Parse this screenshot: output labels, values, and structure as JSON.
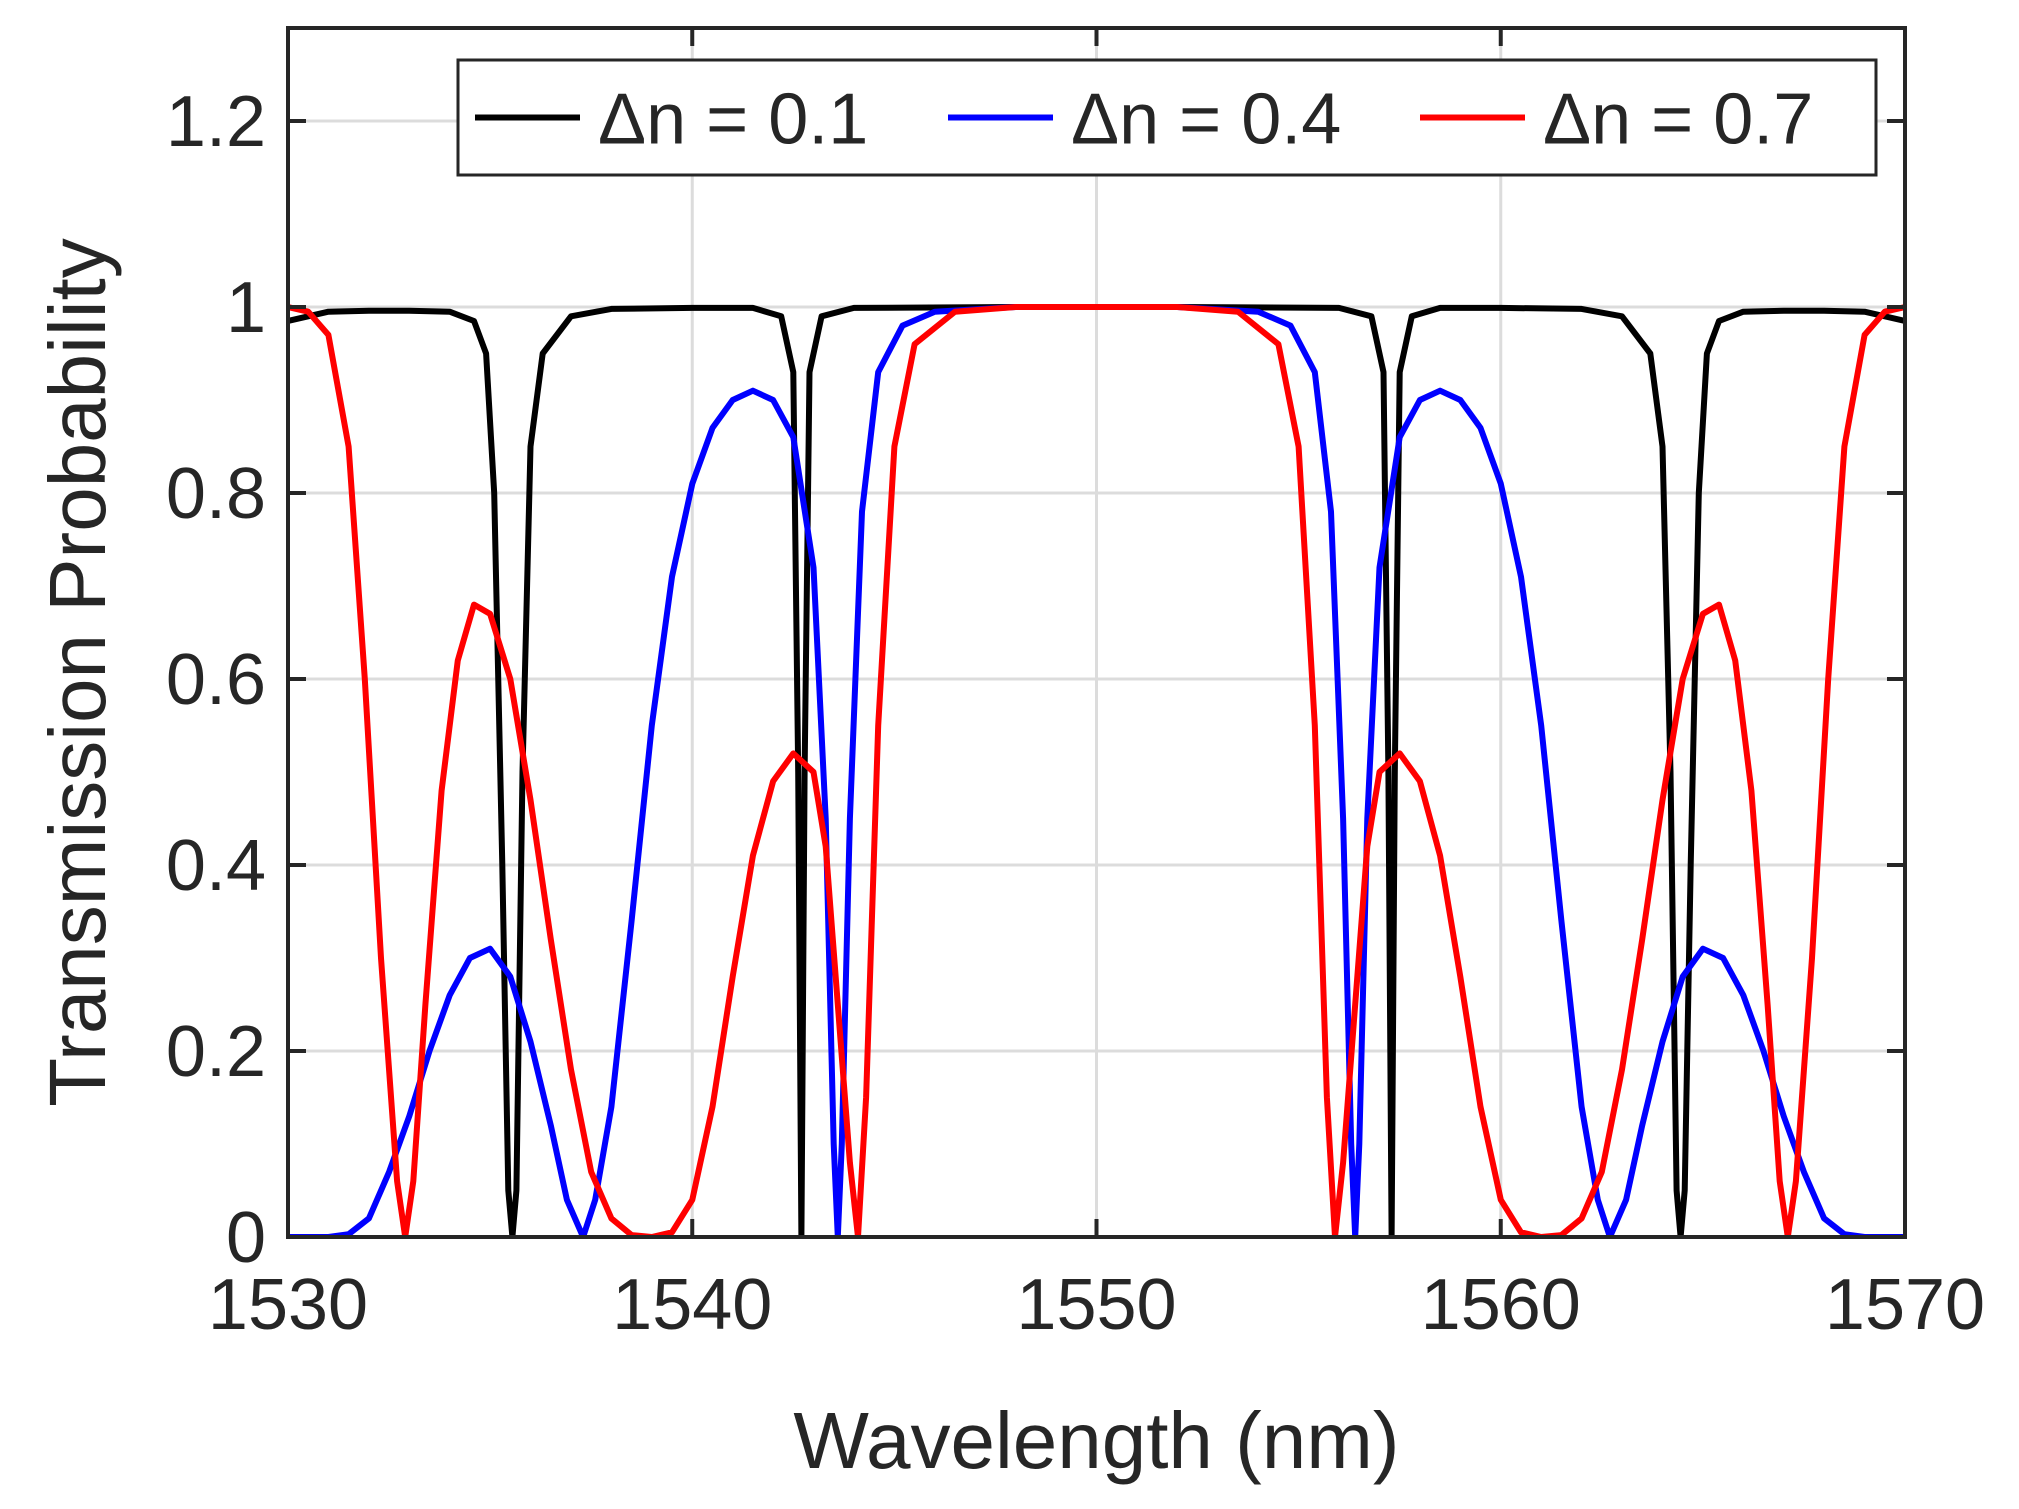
{
  "chart_data": {
    "type": "line",
    "title": "",
    "xlabel": "Wavelength (nm)",
    "ylabel": "Transmission Probability",
    "xlim": [
      1530,
      1570
    ],
    "ylim": [
      0,
      1.3
    ],
    "xticks": [
      1530,
      1540,
      1550,
      1560,
      1570
    ],
    "xtick_labels": [
      "1530",
      "1540",
      "1550",
      "1560",
      "1570"
    ],
    "yticks": [
      0,
      0.2,
      0.4,
      0.6,
      0.8,
      1,
      1.2
    ],
    "ytick_labels": [
      "0",
      "0.2",
      "0.4",
      "0.6",
      "0.8",
      "1",
      "1.2"
    ],
    "grid": true,
    "legend_position": "top-right",
    "series": [
      {
        "name": "Δn = 0.1",
        "color": "#000000",
        "points": [
          [
            1530,
            0.985
          ],
          [
            1530.5,
            0.99
          ],
          [
            1531,
            0.995
          ],
          [
            1532,
            0.996
          ],
          [
            1533,
            0.996
          ],
          [
            1534,
            0.995
          ],
          [
            1534.6,
            0.985
          ],
          [
            1534.9,
            0.95
          ],
          [
            1535.1,
            0.8
          ],
          [
            1535.3,
            0.4
          ],
          [
            1535.45,
            0.05
          ],
          [
            1535.55,
            0
          ],
          [
            1535.65,
            0.05
          ],
          [
            1535.8,
            0.5
          ],
          [
            1536,
            0.85
          ],
          [
            1536.3,
            0.95
          ],
          [
            1537,
            0.99
          ],
          [
            1538,
            0.998
          ],
          [
            1540,
            0.999
          ],
          [
            1541.5,
            0.999
          ],
          [
            1542.2,
            0.99
          ],
          [
            1542.5,
            0.93
          ],
          [
            1542.62,
            0.5
          ],
          [
            1542.7,
            0
          ],
          [
            1542.78,
            0.5
          ],
          [
            1542.9,
            0.93
          ],
          [
            1543.2,
            0.99
          ],
          [
            1544,
            0.999
          ],
          [
            1548,
            1
          ],
          [
            1552,
            1
          ],
          [
            1556,
            0.999
          ],
          [
            1556.8,
            0.99
          ],
          [
            1557.1,
            0.93
          ],
          [
            1557.22,
            0.5
          ],
          [
            1557.3,
            0
          ],
          [
            1557.38,
            0.5
          ],
          [
            1557.5,
            0.93
          ],
          [
            1557.8,
            0.99
          ],
          [
            1558.5,
            0.999
          ],
          [
            1560,
            0.999
          ],
          [
            1562,
            0.998
          ],
          [
            1563,
            0.99
          ],
          [
            1563.7,
            0.95
          ],
          [
            1564,
            0.85
          ],
          [
            1564.2,
            0.5
          ],
          [
            1564.35,
            0.05
          ],
          [
            1564.45,
            0
          ],
          [
            1564.55,
            0.05
          ],
          [
            1564.7,
            0.4
          ],
          [
            1564.9,
            0.8
          ],
          [
            1565.1,
            0.95
          ],
          [
            1565.4,
            0.985
          ],
          [
            1566,
            0.995
          ],
          [
            1567,
            0.996
          ],
          [
            1568,
            0.996
          ],
          [
            1569,
            0.995
          ],
          [
            1569.5,
            0.99
          ],
          [
            1570,
            0.985
          ]
        ]
      },
      {
        "name": "Δn = 0.4",
        "color": "#0000ff",
        "points": [
          [
            1530,
            0
          ],
          [
            1531,
            0
          ],
          [
            1531.5,
            0.003
          ],
          [
            1532,
            0.02
          ],
          [
            1532.5,
            0.07
          ],
          [
            1533,
            0.13
          ],
          [
            1533.5,
            0.2
          ],
          [
            1534,
            0.26
          ],
          [
            1534.5,
            0.3
          ],
          [
            1535,
            0.31
          ],
          [
            1535.5,
            0.28
          ],
          [
            1536,
            0.21
          ],
          [
            1536.5,
            0.12
          ],
          [
            1536.9,
            0.04
          ],
          [
            1537.3,
            0
          ],
          [
            1537.6,
            0.04
          ],
          [
            1538,
            0.14
          ],
          [
            1538.5,
            0.34
          ],
          [
            1539,
            0.55
          ],
          [
            1539.5,
            0.71
          ],
          [
            1540,
            0.81
          ],
          [
            1540.5,
            0.87
          ],
          [
            1541,
            0.9
          ],
          [
            1541.5,
            0.91
          ],
          [
            1542,
            0.9
          ],
          [
            1542.5,
            0.86
          ],
          [
            1543,
            0.72
          ],
          [
            1543.3,
            0.45
          ],
          [
            1543.5,
            0.1
          ],
          [
            1543.6,
            0
          ],
          [
            1543.7,
            0.1
          ],
          [
            1543.9,
            0.45
          ],
          [
            1544.2,
            0.78
          ],
          [
            1544.6,
            0.93
          ],
          [
            1545.2,
            0.98
          ],
          [
            1546,
            0.995
          ],
          [
            1548,
            1
          ],
          [
            1552,
            1
          ],
          [
            1554,
            0.995
          ],
          [
            1554.8,
            0.98
          ],
          [
            1555.4,
            0.93
          ],
          [
            1555.8,
            0.78
          ],
          [
            1556.1,
            0.45
          ],
          [
            1556.3,
            0.1
          ],
          [
            1556.4,
            0
          ],
          [
            1556.5,
            0.1
          ],
          [
            1556.7,
            0.45
          ],
          [
            1557,
            0.72
          ],
          [
            1557.5,
            0.86
          ],
          [
            1558,
            0.9
          ],
          [
            1558.5,
            0.91
          ],
          [
            1559,
            0.9
          ],
          [
            1559.5,
            0.87
          ],
          [
            1560,
            0.81
          ],
          [
            1560.5,
            0.71
          ],
          [
            1561,
            0.55
          ],
          [
            1561.5,
            0.34
          ],
          [
            1562,
            0.14
          ],
          [
            1562.4,
            0.04
          ],
          [
            1562.7,
            0
          ],
          [
            1563.1,
            0.04
          ],
          [
            1563.5,
            0.12
          ],
          [
            1564,
            0.21
          ],
          [
            1564.5,
            0.28
          ],
          [
            1565,
            0.31
          ],
          [
            1565.5,
            0.3
          ],
          [
            1566,
            0.26
          ],
          [
            1566.5,
            0.2
          ],
          [
            1567,
            0.13
          ],
          [
            1567.5,
            0.07
          ],
          [
            1568,
            0.02
          ],
          [
            1568.5,
            0.003
          ],
          [
            1569,
            0
          ],
          [
            1570,
            0
          ]
        ]
      },
      {
        "name": "Δn = 0.7",
        "color": "#ff0000",
        "points": [
          [
            1530,
            1
          ],
          [
            1530.5,
            0.995
          ],
          [
            1531,
            0.97
          ],
          [
            1531.5,
            0.85
          ],
          [
            1531.9,
            0.6
          ],
          [
            1532.3,
            0.3
          ],
          [
            1532.7,
            0.06
          ],
          [
            1532.9,
            0
          ],
          [
            1533.1,
            0.06
          ],
          [
            1533.4,
            0.25
          ],
          [
            1533.8,
            0.48
          ],
          [
            1534.2,
            0.62
          ],
          [
            1534.6,
            0.68
          ],
          [
            1535,
            0.67
          ],
          [
            1535.5,
            0.6
          ],
          [
            1536,
            0.47
          ],
          [
            1536.5,
            0.32
          ],
          [
            1537,
            0.18
          ],
          [
            1537.5,
            0.07
          ],
          [
            1538,
            0.02
          ],
          [
            1538.5,
            0.002
          ],
          [
            1539,
            0
          ],
          [
            1539.5,
            0.005
          ],
          [
            1540,
            0.04
          ],
          [
            1540.5,
            0.14
          ],
          [
            1541,
            0.28
          ],
          [
            1541.5,
            0.41
          ],
          [
            1542,
            0.49
          ],
          [
            1542.5,
            0.52
          ],
          [
            1543,
            0.5
          ],
          [
            1543.3,
            0.42
          ],
          [
            1543.6,
            0.25
          ],
          [
            1543.9,
            0.08
          ],
          [
            1544.1,
            0
          ],
          [
            1544.3,
            0.15
          ],
          [
            1544.6,
            0.55
          ],
          [
            1545,
            0.85
          ],
          [
            1545.5,
            0.96
          ],
          [
            1546.5,
            0.995
          ],
          [
            1548,
            1
          ],
          [
            1552,
            1
          ],
          [
            1553.5,
            0.995
          ],
          [
            1554.5,
            0.96
          ],
          [
            1555,
            0.85
          ],
          [
            1555.4,
            0.55
          ],
          [
            1555.7,
            0.15
          ],
          [
            1555.9,
            0
          ],
          [
            1556.1,
            0.08
          ],
          [
            1556.4,
            0.25
          ],
          [
            1556.7,
            0.42
          ],
          [
            1557,
            0.5
          ],
          [
            1557.5,
            0.52
          ],
          [
            1558,
            0.49
          ],
          [
            1558.5,
            0.41
          ],
          [
            1559,
            0.28
          ],
          [
            1559.5,
            0.14
          ],
          [
            1560,
            0.04
          ],
          [
            1560.5,
            0.005
          ],
          [
            1561,
            0
          ],
          [
            1561.5,
            0.002
          ],
          [
            1562,
            0.02
          ],
          [
            1562.5,
            0.07
          ],
          [
            1563,
            0.18
          ],
          [
            1563.5,
            0.32
          ],
          [
            1564,
            0.47
          ],
          [
            1564.5,
            0.6
          ],
          [
            1565,
            0.67
          ],
          [
            1565.4,
            0.68
          ],
          [
            1565.8,
            0.62
          ],
          [
            1566.2,
            0.48
          ],
          [
            1566.6,
            0.25
          ],
          [
            1566.9,
            0.06
          ],
          [
            1567.1,
            0
          ],
          [
            1567.3,
            0.06
          ],
          [
            1567.7,
            0.3
          ],
          [
            1568.1,
            0.6
          ],
          [
            1568.5,
            0.85
          ],
          [
            1569,
            0.97
          ],
          [
            1569.5,
            0.995
          ],
          [
            1570,
            1
          ]
        ]
      }
    ]
  }
}
